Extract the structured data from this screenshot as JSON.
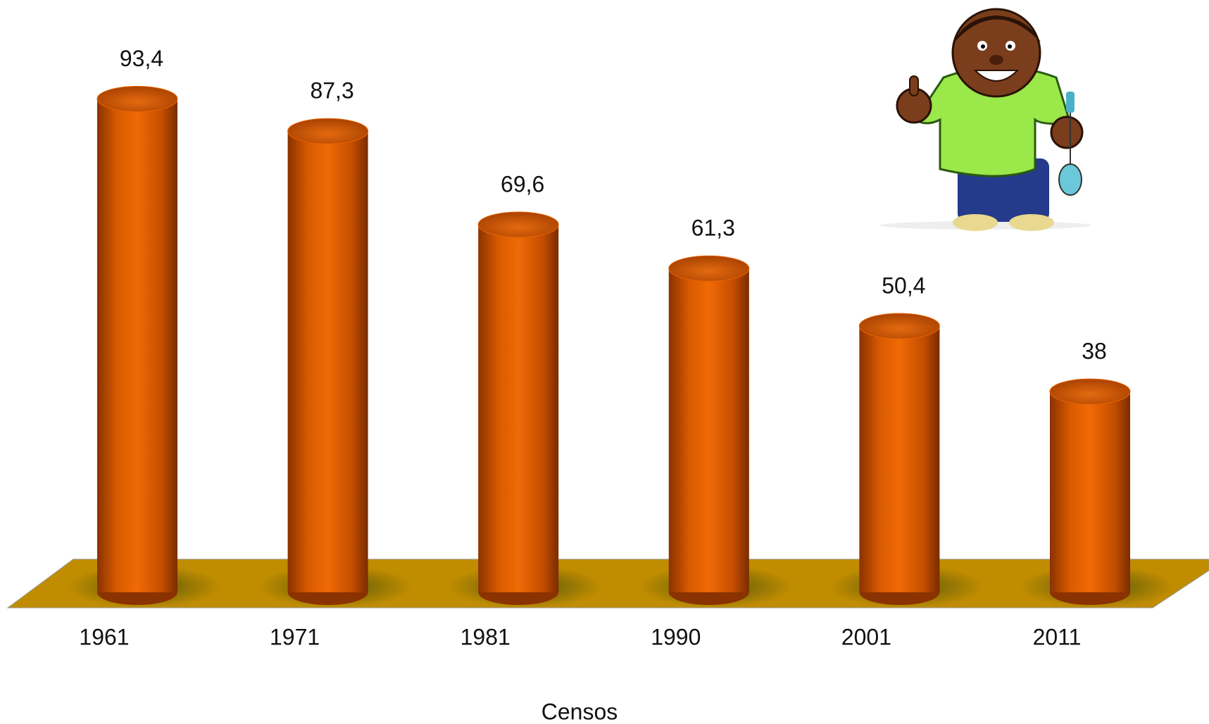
{
  "chart_data": {
    "type": "bar",
    "categories": [
      "1961",
      "1971",
      "1981",
      "1990",
      "2001",
      "2011"
    ],
    "values": [
      93.4,
      87.3,
      69.6,
      61.3,
      50.4,
      38
    ],
    "value_labels": [
      "93,4",
      "87,3",
      "69,6",
      "61,3",
      "50,4",
      "38"
    ],
    "x_label": "Censos",
    "color": "#e86200",
    "floor_color": "#c08c00",
    "ylim": [
      0,
      100
    ]
  }
}
